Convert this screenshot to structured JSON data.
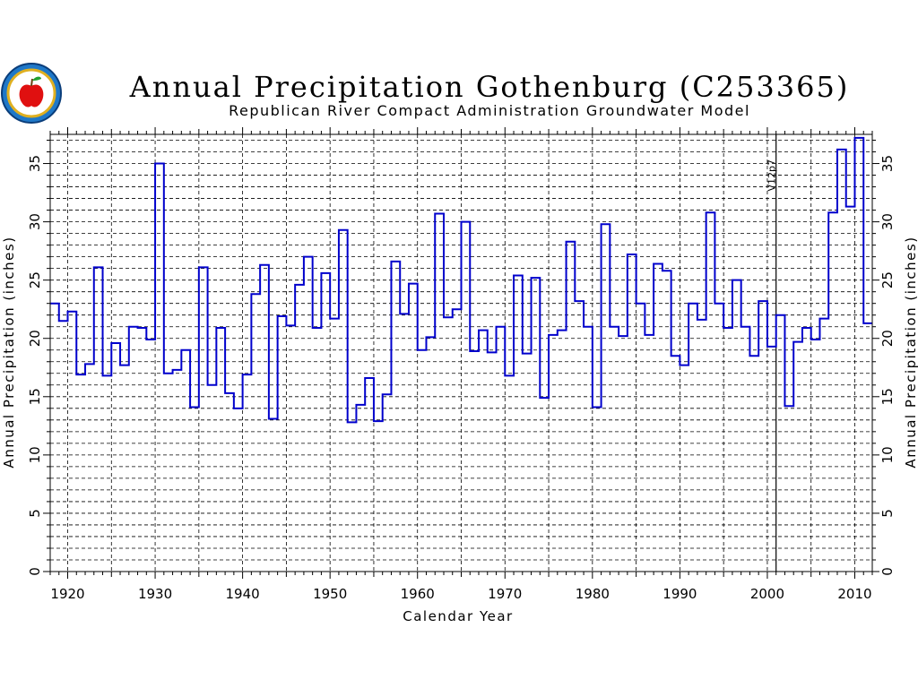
{
  "chart_data": {
    "type": "line",
    "step": true,
    "title": "Annual Precipitation Gothenburg (C253365)",
    "subtitle": "Republican River Compact Administration Groundwater Model",
    "xlabel": "Calendar Year",
    "ylabel": "Annual Precipitation (inches)",
    "ylabel_right": "Annual Precipitation (inches)",
    "xlim": [
      1918,
      2012
    ],
    "ylim": [
      0,
      37.5
    ],
    "xticks": [
      1920,
      1930,
      1940,
      1950,
      1960,
      1970,
      1980,
      1990,
      2000,
      2010
    ],
    "yticks": [
      0,
      5,
      10,
      15,
      20,
      25,
      30,
      35
    ],
    "grid": true,
    "series_color": "#0000cc",
    "marker": {
      "x": 2001,
      "label": "V12p7"
    },
    "logo": "apple-emblem-icon",
    "series": [
      {
        "x": [
          1918,
          1919,
          1920,
          1921,
          1922,
          1923,
          1924,
          1925,
          1926,
          1927,
          1928,
          1929,
          1930,
          1931,
          1932,
          1933,
          1934,
          1935,
          1936,
          1937,
          1938,
          1939,
          1940,
          1941,
          1942,
          1943,
          1944,
          1945,
          1946,
          1947,
          1948,
          1949,
          1950,
          1951,
          1952,
          1953,
          1954,
          1955,
          1956,
          1957,
          1958,
          1959,
          1960,
          1961,
          1962,
          1963,
          1964,
          1965,
          1966,
          1967,
          1968,
          1969,
          1970,
          1971,
          1972,
          1973,
          1974,
          1975,
          1976,
          1977,
          1978,
          1979,
          1980,
          1981,
          1982,
          1983,
          1984,
          1985,
          1986,
          1987,
          1988,
          1989,
          1990,
          1991,
          1992,
          1993,
          1994,
          1995,
          1996,
          1997,
          1998,
          1999,
          2000,
          2001,
          2002,
          2003,
          2004,
          2005,
          2006,
          2007,
          2008,
          2009,
          2010,
          2011
        ],
        "values": [
          23.0,
          21.5,
          22.3,
          16.9,
          17.8,
          26.1,
          16.8,
          19.6,
          17.7,
          21.0,
          20.9,
          19.9,
          35.0,
          17.0,
          17.3,
          19.0,
          14.1,
          26.1,
          16.0,
          20.9,
          15.3,
          14.0,
          16.9,
          23.8,
          26.3,
          13.1,
          21.9,
          21.1,
          24.6,
          27.0,
          20.9,
          25.6,
          21.7,
          29.3,
          12.8,
          14.3,
          16.6,
          12.9,
          15.2,
          26.6,
          22.1,
          24.7,
          19.0,
          20.1,
          30.7,
          21.8,
          22.5,
          30.0,
          18.9,
          20.7,
          18.8,
          21.0,
          16.8,
          25.4,
          18.7,
          25.2,
          14.9,
          20.3,
          20.7,
          28.3,
          23.2,
          21.0,
          14.1,
          29.8,
          21.0,
          20.2,
          27.2,
          23.0,
          20.3,
          26.4,
          25.8,
          18.5,
          17.7,
          23.0,
          21.6,
          30.8,
          23.0,
          20.9,
          25.0,
          21.0,
          18.5,
          23.2,
          19.3,
          22.0,
          14.2,
          19.7,
          20.9,
          19.9,
          21.7,
          30.8,
          36.2,
          31.3,
          37.2,
          21.3
        ]
      }
    ]
  }
}
